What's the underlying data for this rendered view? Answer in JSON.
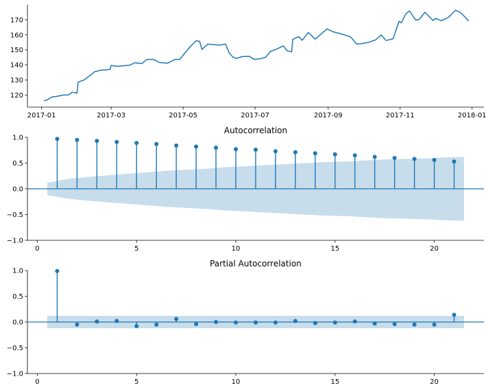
{
  "chart_data": [
    {
      "type": "line",
      "title": "",
      "xlabel": "",
      "ylabel": "",
      "xlim": [
        "2016-12-20",
        "2018-01-11"
      ],
      "ylim": [
        112,
        180
      ],
      "x_ticks": [
        "2017-01",
        "2017-03",
        "2017-05",
        "2017-07",
        "2017-09",
        "2017-11",
        "2018-01"
      ],
      "x_tick_dates": [
        "2017-01-01",
        "2017-03-01",
        "2017-05-01",
        "2017-07-01",
        "2017-09-01",
        "2017-11-01",
        "2018-01-01"
      ],
      "y_ticks": [
        120,
        130,
        140,
        150,
        160,
        170
      ],
      "line_color": "#1f77b4",
      "series": [
        {
          "x": [
            "2017-01-03",
            "2017-01-05",
            "2017-01-10",
            "2017-01-13",
            "2017-01-19",
            "2017-01-24",
            "2017-01-27",
            "2017-01-31",
            "2017-02-01",
            "2017-02-06",
            "2017-02-10",
            "2017-02-15",
            "2017-02-21",
            "2017-02-24",
            "2017-02-28",
            "2017-03-01",
            "2017-03-06",
            "2017-03-13",
            "2017-03-17",
            "2017-03-21",
            "2017-03-27",
            "2017-03-31",
            "2017-04-06",
            "2017-04-11",
            "2017-04-18",
            "2017-04-24",
            "2017-04-28",
            "2017-05-02",
            "2017-05-08",
            "2017-05-12",
            "2017-05-15",
            "2017-05-17",
            "2017-05-22",
            "2017-05-26",
            "2017-06-01",
            "2017-06-06",
            "2017-06-09",
            "2017-06-12",
            "2017-06-15",
            "2017-06-20",
            "2017-06-26",
            "2017-06-30",
            "2017-07-05",
            "2017-07-10",
            "2017-07-14",
            "2017-07-19",
            "2017-07-25",
            "2017-07-28",
            "2017-08-01",
            "2017-08-02",
            "2017-08-07",
            "2017-08-10",
            "2017-08-15",
            "2017-08-21",
            "2017-08-25",
            "2017-08-31",
            "2017-09-05",
            "2017-09-11",
            "2017-09-15",
            "2017-09-20",
            "2017-09-25",
            "2017-09-29",
            "2017-10-05",
            "2017-10-11",
            "2017-10-16",
            "2017-10-20",
            "2017-10-26",
            "2017-10-31",
            "2017-11-02",
            "2017-11-06",
            "2017-11-09",
            "2017-11-14",
            "2017-11-17",
            "2017-11-22",
            "2017-11-29",
            "2017-12-01",
            "2017-12-06",
            "2017-12-12",
            "2017-12-18",
            "2017-12-22",
            "2017-12-27",
            "2017-12-29"
          ],
          "y": [
            116.2,
            116.5,
            118.8,
            119.0,
            120.0,
            120.1,
            121.9,
            121.3,
            128.7,
            130.0,
            132.4,
            135.5,
            136.7,
            136.7,
            137.0,
            139.7,
            139.1,
            139.6,
            139.9,
            141.5,
            140.9,
            143.6,
            143.7,
            141.6,
            141.2,
            143.7,
            143.6,
            147.5,
            153.0,
            156.1,
            155.7,
            150.3,
            153.9,
            153.6,
            153.2,
            153.9,
            148.1,
            145.4,
            144.3,
            145.6,
            145.8,
            143.8,
            144.1,
            145.1,
            149.0,
            150.5,
            152.7,
            149.5,
            148.7,
            157.1,
            158.8,
            156.4,
            161.6,
            157.2,
            159.9,
            164.0,
            162.1,
            160.9,
            159.9,
            158.7,
            154.0,
            154.1,
            155.0,
            156.6,
            159.9,
            156.3,
            157.4,
            169.0,
            168.1,
            174.2,
            175.9,
            169.9,
            170.2,
            175.0,
            169.5,
            171.0,
            169.4,
            171.7,
            176.4,
            175.0,
            171.1,
            169.2
          ]
        }
      ]
    },
    {
      "type": "stem",
      "title": "Autocorrelation",
      "xlabel": "",
      "ylabel": "",
      "xlim": [
        -0.5,
        22.5
      ],
      "ylim": [
        -1.0,
        1.0
      ],
      "x_ticks": [
        0,
        5,
        10,
        15,
        20
      ],
      "y_ticks": [
        -1.0,
        -0.5,
        0.0,
        0.5,
        1.0
      ],
      "y_tick_labels": [
        "−1.0",
        "−0.5",
        "0.0",
        "0.5",
        "1.0"
      ],
      "color": "#1f77b4",
      "confidence_fill": "#1f77b4",
      "confidence_x_range": [
        0.5,
        21.5
      ],
      "confidence_band": [
        0.12,
        0.19,
        0.23,
        0.26,
        0.29,
        0.32,
        0.35,
        0.37,
        0.39,
        0.42,
        0.44,
        0.46,
        0.48,
        0.5,
        0.52,
        0.53,
        0.55,
        0.57,
        0.58,
        0.59,
        0.61,
        0.62
      ],
      "series": [
        {
          "lags": [
            1,
            2,
            3,
            4,
            5,
            6,
            7,
            8,
            9,
            10,
            11,
            12,
            13,
            14,
            15,
            16,
            17,
            18,
            19,
            20,
            21
          ],
          "values": [
            0.97,
            0.95,
            0.93,
            0.91,
            0.89,
            0.87,
            0.84,
            0.82,
            0.8,
            0.77,
            0.76,
            0.73,
            0.71,
            0.69,
            0.67,
            0.65,
            0.62,
            0.6,
            0.58,
            0.56,
            0.53
          ]
        }
      ]
    },
    {
      "type": "stem",
      "title": "Partial Autocorrelation",
      "xlabel": "",
      "ylabel": "",
      "xlim": [
        -0.5,
        22.5
      ],
      "ylim": [
        -1.0,
        1.0
      ],
      "x_ticks": [
        0,
        5,
        10,
        15,
        20
      ],
      "y_ticks": [
        -1.0,
        -0.5,
        0.0,
        0.5,
        1.0
      ],
      "y_tick_labels": [
        "−1.0",
        "−0.5",
        "0.0",
        "0.5",
        "1.0"
      ],
      "color": "#1f77b4",
      "confidence_fill": "#1f77b4",
      "confidence_x_range": [
        0.5,
        21.5
      ],
      "confidence_band": [
        0.12
      ],
      "series": [
        {
          "lags": [
            1,
            2,
            3,
            4,
            5,
            6,
            7,
            8,
            9,
            10,
            11,
            12,
            13,
            14,
            15,
            16,
            17,
            18,
            19,
            20,
            21
          ],
          "values": [
            0.99,
            -0.05,
            0.01,
            0.02,
            -0.08,
            -0.05,
            0.06,
            -0.04,
            0.0,
            -0.01,
            -0.01,
            -0.01,
            0.02,
            -0.02,
            -0.01,
            0.01,
            -0.03,
            -0.04,
            -0.05,
            -0.05,
            0.14
          ]
        }
      ]
    }
  ]
}
